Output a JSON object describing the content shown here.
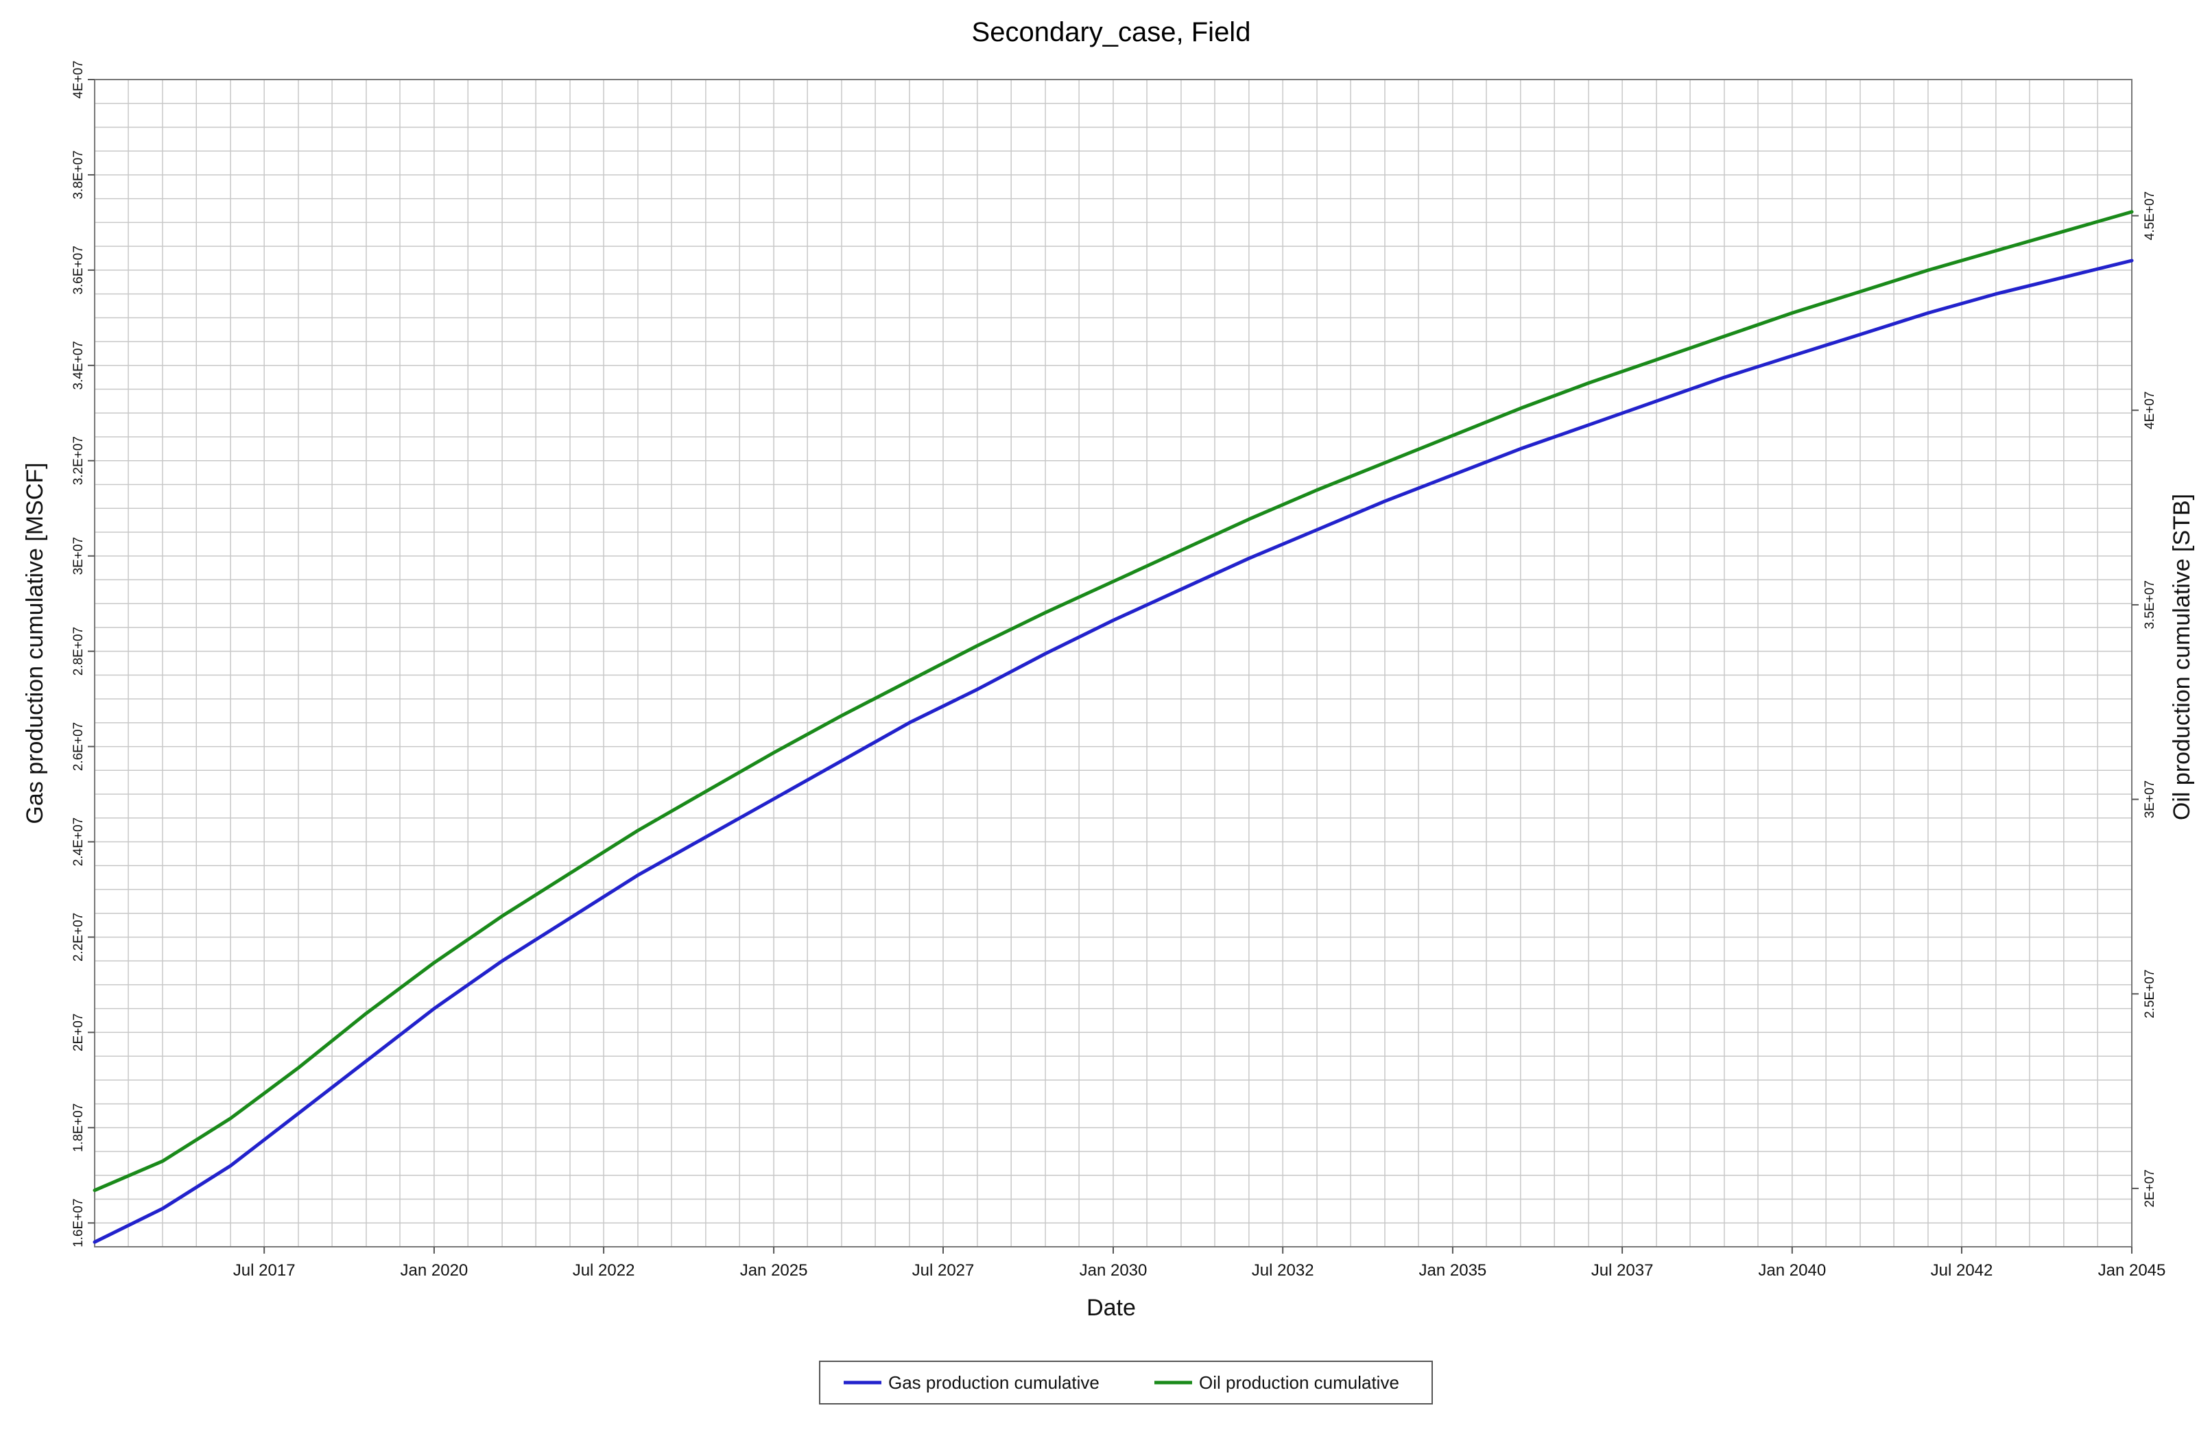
{
  "chart_data": {
    "type": "line",
    "title": "Secondary_case, Field",
    "xlabel": "Date",
    "ylabel": "Gas production cumulative [MSCF]",
    "y2label": "Oil production cumulative [STB]",
    "xlim": [
      "2015-01-01",
      "2045-01-01"
    ],
    "ylim": [
      15500000,
      40000000
    ],
    "y2lim": [
      18500000,
      48500000
    ],
    "x_ticks": [
      {
        "date": "2017-07-01",
        "label": "Jul 2017"
      },
      {
        "date": "2020-01-01",
        "label": "Jan 2020"
      },
      {
        "date": "2022-07-01",
        "label": "Jul 2022"
      },
      {
        "date": "2025-01-01",
        "label": "Jan 2025"
      },
      {
        "date": "2027-07-01",
        "label": "Jul 2027"
      },
      {
        "date": "2030-01-01",
        "label": "Jan 2030"
      },
      {
        "date": "2032-07-01",
        "label": "Jul 2032"
      },
      {
        "date": "2035-01-01",
        "label": "Jan 2035"
      },
      {
        "date": "2037-07-01",
        "label": "Jul 2037"
      },
      {
        "date": "2040-01-01",
        "label": "Jan 2040"
      },
      {
        "date": "2042-07-01",
        "label": "Jul 2042"
      },
      {
        "date": "2045-01-01",
        "label": "Jan 2045"
      }
    ],
    "y_ticks": [
      {
        "value": 16000000,
        "label": "1.6E+07"
      },
      {
        "value": 18000000,
        "label": "1.8E+07"
      },
      {
        "value": 20000000,
        "label": "2E+07"
      },
      {
        "value": 22000000,
        "label": "2.2E+07"
      },
      {
        "value": 24000000,
        "label": "2.4E+07"
      },
      {
        "value": 26000000,
        "label": "2.6E+07"
      },
      {
        "value": 28000000,
        "label": "2.8E+07"
      },
      {
        "value": 30000000,
        "label": "3E+07"
      },
      {
        "value": 32000000,
        "label": "3.2E+07"
      },
      {
        "value": 34000000,
        "label": "3.4E+07"
      },
      {
        "value": 36000000,
        "label": "3.6E+07"
      },
      {
        "value": 38000000,
        "label": "3.8E+07"
      },
      {
        "value": 40000000,
        "label": "4E+07"
      }
    ],
    "y2_ticks": [
      {
        "value": 20000000,
        "label": "2E+07"
      },
      {
        "value": 25000000,
        "label": "2.5E+07"
      },
      {
        "value": 30000000,
        "label": "3E+07"
      },
      {
        "value": 35000000,
        "label": "3.5E+07"
      },
      {
        "value": 40000000,
        "label": "4E+07"
      },
      {
        "value": 45000000,
        "label": "4.5E+07"
      }
    ],
    "grid": true,
    "legend_position": "bottom-center",
    "series": [
      {
        "name": "Gas production cumulative",
        "axis": "left",
        "color": "#2222cc",
        "points": [
          [
            "2015-01-01",
            15600000
          ],
          [
            "2016-01-01",
            16300000
          ],
          [
            "2017-01-01",
            17200000
          ],
          [
            "2018-01-01",
            18300000
          ],
          [
            "2019-01-01",
            19400000
          ],
          [
            "2020-01-01",
            20500000
          ],
          [
            "2021-01-01",
            21500000
          ],
          [
            "2022-01-01",
            22400000
          ],
          [
            "2023-01-01",
            23300000
          ],
          [
            "2024-01-01",
            24100000
          ],
          [
            "2025-01-01",
            24900000
          ],
          [
            "2026-01-01",
            25700000
          ],
          [
            "2027-01-01",
            26500000
          ],
          [
            "2028-01-01",
            27200000
          ],
          [
            "2029-01-01",
            27950000
          ],
          [
            "2030-01-01",
            28650000
          ],
          [
            "2031-01-01",
            29300000
          ],
          [
            "2032-01-01",
            29950000
          ],
          [
            "2033-01-01",
            30550000
          ],
          [
            "2034-01-01",
            31150000
          ],
          [
            "2035-01-01",
            31700000
          ],
          [
            "2036-01-01",
            32250000
          ],
          [
            "2037-01-01",
            32750000
          ],
          [
            "2038-01-01",
            33250000
          ],
          [
            "2039-01-01",
            33750000
          ],
          [
            "2040-01-01",
            34200000
          ],
          [
            "2041-01-01",
            34650000
          ],
          [
            "2042-01-01",
            35100000
          ],
          [
            "2043-01-01",
            35500000
          ],
          [
            "2044-01-01",
            35850000
          ],
          [
            "2045-01-01",
            36200000
          ]
        ]
      },
      {
        "name": "Oil production cumulative",
        "axis": "right",
        "color": "#1a8a1a",
        "points": [
          [
            "2015-01-01",
            19950000
          ],
          [
            "2016-01-01",
            20700000
          ],
          [
            "2017-01-01",
            21800000
          ],
          [
            "2018-01-01",
            23100000
          ],
          [
            "2019-01-01",
            24500000
          ],
          [
            "2020-01-01",
            25800000
          ],
          [
            "2021-01-01",
            27000000
          ],
          [
            "2022-01-01",
            28100000
          ],
          [
            "2023-01-01",
            29200000
          ],
          [
            "2024-01-01",
            30200000
          ],
          [
            "2025-01-01",
            31200000
          ],
          [
            "2026-01-01",
            32150000
          ],
          [
            "2027-01-01",
            33050000
          ],
          [
            "2028-01-01",
            33950000
          ],
          [
            "2029-01-01",
            34800000
          ],
          [
            "2030-01-01",
            35600000
          ],
          [
            "2031-01-01",
            36400000
          ],
          [
            "2032-01-01",
            37200000
          ],
          [
            "2033-01-01",
            37950000
          ],
          [
            "2034-01-01",
            38650000
          ],
          [
            "2035-01-01",
            39350000
          ],
          [
            "2036-01-01",
            40050000
          ],
          [
            "2037-01-01",
            40700000
          ],
          [
            "2038-01-01",
            41300000
          ],
          [
            "2039-01-01",
            41900000
          ],
          [
            "2040-01-01",
            42500000
          ],
          [
            "2041-01-01",
            43050000
          ],
          [
            "2042-01-01",
            43600000
          ],
          [
            "2043-01-01",
            44100000
          ],
          [
            "2044-01-01",
            44600000
          ],
          [
            "2045-01-01",
            45100000
          ]
        ]
      }
    ]
  }
}
